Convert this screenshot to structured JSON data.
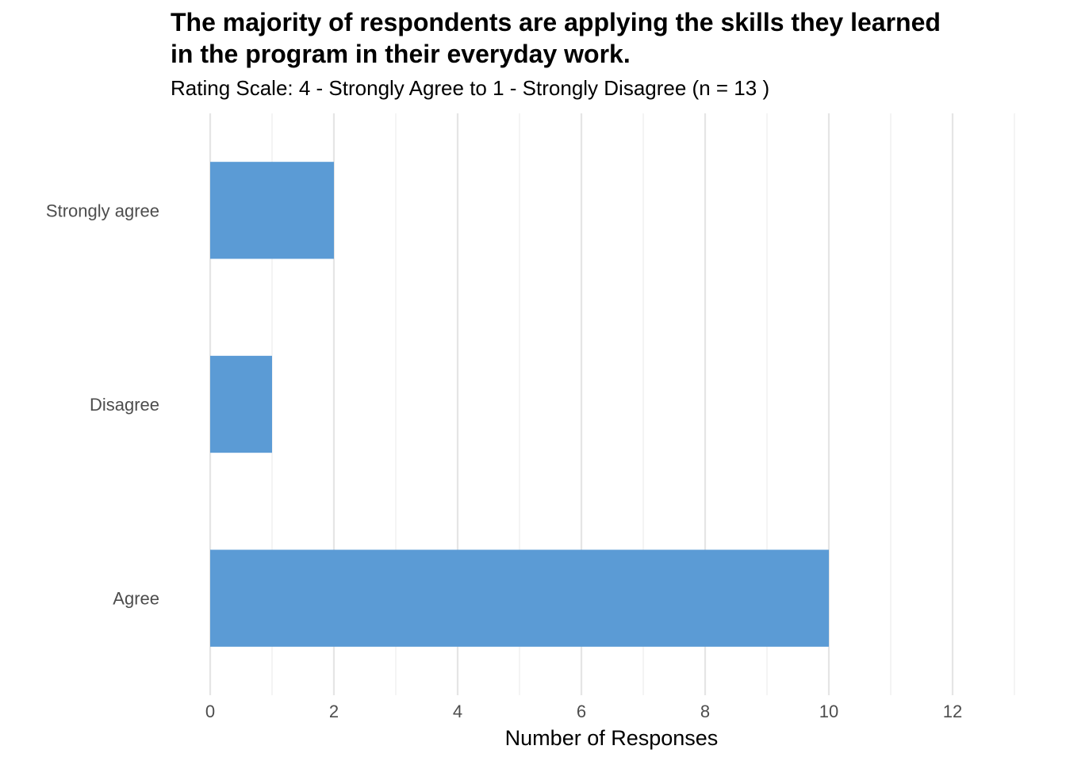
{
  "chart_data": {
    "type": "bar",
    "orientation": "horizontal",
    "title_lines": [
      "The majority of respondents are applying the skills they learned",
      "in the program in their everyday work."
    ],
    "subtitle": "Rating Scale: 4 - Strongly Agree to 1 - Strongly Disagree (n = 13 )",
    "xlabel": "Number of Responses",
    "ylabel": "",
    "categories": [
      "Strongly agree",
      "Disagree",
      "Agree"
    ],
    "values": [
      2,
      1,
      10
    ],
    "xlim": [
      0,
      13
    ],
    "x_ticks": [
      0,
      2,
      4,
      6,
      8,
      10,
      12
    ],
    "x_tick_labels": [
      "0",
      "2",
      "4",
      "6",
      "8",
      "10",
      "12"
    ],
    "grid": true,
    "legend": "none",
    "bar_color": "#5b9bd5"
  }
}
